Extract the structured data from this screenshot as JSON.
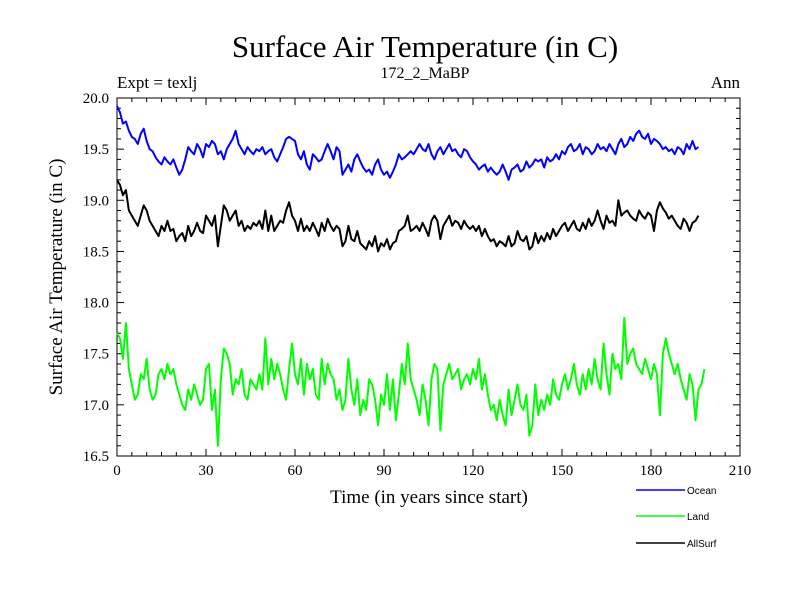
{
  "chart_data": {
    "type": "line",
    "title": "Surface Air Temperature (in C)",
    "subtitle": "172_2_MaBP",
    "experiment_label": "Expt = texlj",
    "period_label": "Ann",
    "xlabel": "Time (in years since start)",
    "ylabel": "Surface Air Temperature (in C)",
    "xlim": [
      0,
      210
    ],
    "ylim": [
      16.5,
      20.0
    ],
    "xticks": [
      0,
      30,
      60,
      90,
      120,
      150,
      180,
      210
    ],
    "yticks": [
      16.5,
      17.0,
      17.5,
      18.0,
      18.5,
      19.0,
      19.5,
      20.0
    ],
    "x_start": 0,
    "x_step": 1,
    "series": [
      {
        "name": "Ocean",
        "color": "#0000ff",
        "values": [
          19.92,
          19.86,
          19.75,
          19.77,
          19.68,
          19.62,
          19.6,
          19.55,
          19.65,
          19.7,
          19.58,
          19.5,
          19.48,
          19.42,
          19.38,
          19.35,
          19.42,
          19.38,
          19.35,
          19.4,
          19.32,
          19.25,
          19.3,
          19.4,
          19.52,
          19.48,
          19.45,
          19.55,
          19.5,
          19.42,
          19.55,
          19.52,
          19.58,
          19.55,
          19.45,
          19.48,
          19.4,
          19.5,
          19.55,
          19.6,
          19.68,
          19.55,
          19.5,
          19.45,
          19.52,
          19.48,
          19.45,
          19.5,
          19.48,
          19.52,
          19.45,
          19.48,
          19.5,
          19.42,
          19.38,
          19.45,
          19.52,
          19.6,
          19.62,
          19.6,
          19.58,
          19.45,
          19.4,
          19.48,
          19.35,
          19.3,
          19.45,
          19.42,
          19.38,
          19.4,
          19.48,
          19.55,
          19.48,
          19.4,
          19.52,
          19.48,
          19.25,
          19.3,
          19.35,
          19.28,
          19.4,
          19.45,
          19.38,
          19.32,
          19.28,
          19.3,
          19.25,
          19.35,
          19.4,
          19.3,
          19.25,
          19.28,
          19.22,
          19.28,
          19.35,
          19.45,
          19.4,
          19.42,
          19.45,
          19.48,
          19.45,
          19.5,
          19.55,
          19.5,
          19.48,
          19.55,
          19.45,
          19.4,
          19.48,
          19.52,
          19.45,
          19.5,
          19.55,
          19.48,
          19.5,
          19.45,
          19.42,
          19.5,
          19.48,
          19.42,
          19.38,
          19.35,
          19.3,
          19.33,
          19.35,
          19.28,
          19.32,
          19.28,
          19.25,
          19.28,
          19.35,
          19.28,
          19.2,
          19.3,
          19.32,
          19.35,
          19.28,
          19.3,
          19.38,
          19.32,
          19.35,
          19.4,
          19.38,
          19.4,
          19.32,
          19.42,
          19.38,
          19.4,
          19.45,
          19.4,
          19.48,
          19.45,
          19.52,
          19.55,
          19.48,
          19.5,
          19.55,
          19.45,
          19.52,
          19.5,
          19.45,
          19.48,
          19.55,
          19.5,
          19.52,
          19.48,
          19.55,
          19.5,
          19.45,
          19.55,
          19.6,
          19.52,
          19.55,
          19.62,
          19.58,
          19.65,
          19.68,
          19.62,
          19.6,
          19.65,
          19.55,
          19.6,
          19.58,
          19.55,
          19.5,
          19.52,
          19.48,
          19.5,
          19.45,
          19.52,
          19.5,
          19.45,
          19.55,
          19.5,
          19.58,
          19.5,
          19.52
        ]
      },
      {
        "name": "Land",
        "color": "#00ff00",
        "values": [
          17.7,
          17.65,
          17.45,
          17.8,
          17.35,
          17.2,
          17.05,
          17.1,
          17.3,
          17.25,
          17.45,
          17.15,
          17.05,
          17.1,
          17.3,
          17.35,
          17.25,
          17.4,
          17.3,
          17.35,
          17.2,
          17.1,
          17.0,
          16.95,
          17.15,
          17.05,
          17.2,
          17.1,
          17.0,
          17.05,
          17.35,
          17.4,
          16.95,
          17.15,
          16.6,
          17.25,
          17.55,
          17.5,
          17.4,
          17.1,
          17.25,
          17.2,
          17.35,
          17.1,
          17.05,
          17.25,
          17.2,
          17.15,
          17.3,
          17.15,
          17.65,
          17.2,
          17.45,
          17.25,
          17.4,
          17.3,
          17.15,
          17.05,
          17.35,
          17.6,
          17.3,
          17.2,
          17.45,
          17.1,
          17.4,
          17.25,
          17.35,
          17.1,
          17.05,
          17.45,
          17.2,
          17.4,
          17.3,
          17.25,
          17.05,
          17.15,
          16.95,
          17.05,
          17.45,
          17.15,
          17.0,
          17.25,
          16.9,
          17.05,
          16.95,
          17.25,
          17.2,
          17.05,
          16.8,
          17.1,
          17.0,
          17.3,
          16.95,
          17.25,
          16.85,
          17.1,
          17.4,
          17.2,
          17.6,
          17.25,
          17.15,
          17.05,
          16.9,
          17.2,
          17.05,
          16.8,
          17.25,
          17.4,
          17.35,
          16.75,
          17.2,
          17.3,
          17.4,
          17.25,
          17.3,
          17.35,
          17.15,
          17.25,
          17.3,
          17.2,
          17.35,
          17.25,
          17.45,
          17.15,
          17.3,
          17.1,
          16.95,
          17.0,
          16.85,
          17.05,
          16.9,
          16.8,
          17.15,
          16.9,
          17.05,
          17.2,
          17.0,
          16.95,
          17.1,
          16.7,
          16.8,
          17.2,
          16.9,
          17.05,
          16.95,
          17.1,
          17.0,
          17.25,
          17.1,
          17.05,
          17.2,
          17.3,
          17.15,
          17.25,
          17.4,
          17.2,
          17.1,
          17.3,
          17.15,
          17.35,
          17.2,
          17.45,
          17.25,
          17.15,
          17.6,
          17.3,
          17.1,
          17.5,
          17.35,
          17.4,
          17.25,
          17.85,
          17.4,
          17.5,
          17.55,
          17.4,
          17.35,
          17.3,
          17.45,
          17.35,
          17.25,
          17.4,
          17.3,
          16.9,
          17.5,
          17.65,
          17.5,
          17.4,
          17.3,
          17.4,
          17.25,
          17.15,
          17.05,
          17.3,
          17.2,
          16.85,
          17.15,
          17.2,
          17.35
        ]
      },
      {
        "name": "AllSurf",
        "color": "#000000",
        "values": [
          19.2,
          19.15,
          19.05,
          19.1,
          18.9,
          18.85,
          18.8,
          18.75,
          18.85,
          18.95,
          18.9,
          18.8,
          18.75,
          18.7,
          18.65,
          18.75,
          18.7,
          18.8,
          18.7,
          18.72,
          18.6,
          18.65,
          18.68,
          18.6,
          18.75,
          18.65,
          18.7,
          18.78,
          18.7,
          18.68,
          18.85,
          18.8,
          18.75,
          18.85,
          18.55,
          18.75,
          18.95,
          18.9,
          18.8,
          18.85,
          18.9,
          18.75,
          18.8,
          18.7,
          18.75,
          18.72,
          18.78,
          18.75,
          18.8,
          18.72,
          18.9,
          18.7,
          18.85,
          18.7,
          18.75,
          18.8,
          18.78,
          18.9,
          18.98,
          18.85,
          18.8,
          18.7,
          18.82,
          18.7,
          18.75,
          18.7,
          18.78,
          18.72,
          18.65,
          18.78,
          18.7,
          18.82,
          18.75,
          18.7,
          18.75,
          18.72,
          18.55,
          18.6,
          18.75,
          18.62,
          18.6,
          18.7,
          18.58,
          18.55,
          18.52,
          18.6,
          18.55,
          18.65,
          18.5,
          18.58,
          18.55,
          18.62,
          18.52,
          18.58,
          18.6,
          18.7,
          18.72,
          18.75,
          18.85,
          18.7,
          18.72,
          18.75,
          18.7,
          18.78,
          18.72,
          18.65,
          18.8,
          18.85,
          18.8,
          18.62,
          18.75,
          18.8,
          18.85,
          18.75,
          18.8,
          18.78,
          18.72,
          18.8,
          18.75,
          18.72,
          18.75,
          18.7,
          18.75,
          18.65,
          18.72,
          18.65,
          18.6,
          18.62,
          18.55,
          18.6,
          18.58,
          18.55,
          18.65,
          18.55,
          18.58,
          18.7,
          18.62,
          18.6,
          18.65,
          18.52,
          18.55,
          18.68,
          18.58,
          18.65,
          18.6,
          18.68,
          18.62,
          18.72,
          18.65,
          18.7,
          18.75,
          18.78,
          18.7,
          18.75,
          18.8,
          18.72,
          18.7,
          18.78,
          18.72,
          18.82,
          18.75,
          18.8,
          18.9,
          18.8,
          18.72,
          18.85,
          18.78,
          18.8,
          18.75,
          19.0,
          18.85,
          18.88,
          18.9,
          18.85,
          18.82,
          18.8,
          18.9,
          18.85,
          18.82,
          18.88,
          18.85,
          18.7,
          18.9,
          18.98,
          18.92,
          18.88,
          18.82,
          18.85,
          18.8,
          18.75,
          18.72,
          18.82,
          18.78,
          18.7,
          18.78,
          18.8,
          18.85
        ]
      }
    ],
    "legend_position": "bottom-right"
  }
}
